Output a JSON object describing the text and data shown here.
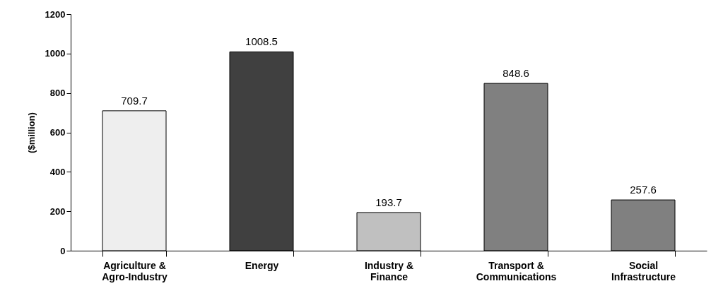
{
  "chart_data": {
    "type": "bar",
    "ylabel": "($million)",
    "categories": [
      "Agriculture & Agro-Industry",
      "Energy",
      "Industry & Finance",
      "Transport & Communications",
      "Social Infrastructure"
    ],
    "values": [
      709.7,
      1008.5,
      193.7,
      848.6,
      257.6
    ],
    "colors": [
      "#eeeeee",
      "#404040",
      "#c0c0c0",
      "#808080",
      "#808080"
    ],
    "ylim": [
      0,
      1200
    ],
    "yticks": [
      0,
      200,
      400,
      600,
      800,
      1000,
      1200
    ],
    "data_labels": true,
    "grid": false,
    "legend": false
  }
}
